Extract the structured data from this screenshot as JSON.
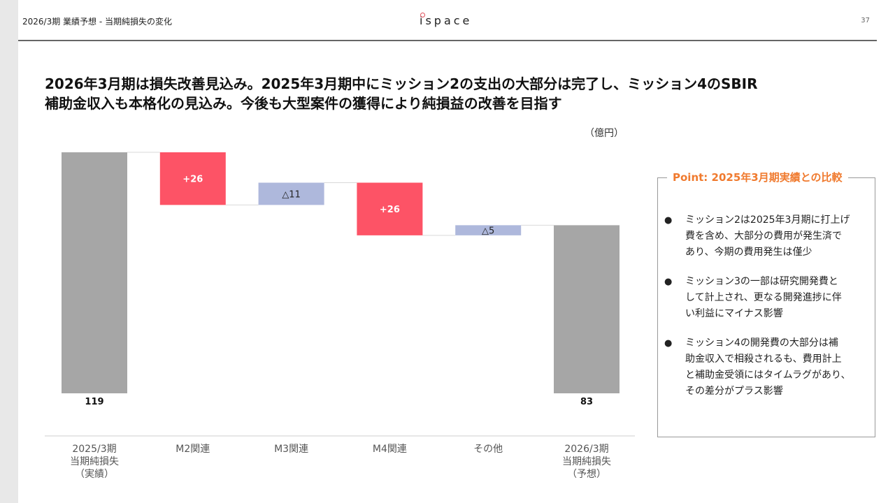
{
  "header": {
    "section_title": "2026/3期 業績予想 - 当期純損失の変化",
    "logo_text": "ispace",
    "page_number": "37"
  },
  "headline": {
    "line1": "2026年3月期は損失改善見込み。2025年3月期中にミッション2の支出の大部分は完了し、ミッション4のSBIR",
    "line2": "補助金収入も本格化の見込み。今後も大型案件の獲得により純損益の改善を目指す"
  },
  "unit_label": "（億円）",
  "point_box": {
    "title": "Point: 2025年3月期実績との比較",
    "bullet_symbol": "●",
    "items": [
      {
        "lines": [
          "ミッション2は2025年3月期に打上げ",
          "費を含め、大部分の費用が発生済で",
          "あり、今期の費用発生は僅少"
        ]
      },
      {
        "lines": [
          "ミッション3の一部は研究開発費と",
          "して計上され、更なる開発進捗に伴",
          "い利益にマイナス影響"
        ]
      },
      {
        "lines": [
          "ミッション4の開発費の大部分は補",
          "助金収入で相殺されるも、費用計上",
          "と補助金受領にはタイムラグがあり、",
          "その差分がプラス影響"
        ]
      }
    ]
  },
  "colors": {
    "total": "#a6a6a6",
    "positive": "#fd5366",
    "negative": "#aeb8dc",
    "point_title": "#f07a2e"
  },
  "chart_data": {
    "type": "waterfall",
    "title": "",
    "xlabel": "",
    "ylabel": "",
    "unit": "億円",
    "categories": [
      {
        "lines": [
          "2025/3期",
          "当期純損失",
          "（実績）"
        ]
      },
      {
        "lines": [
          "M2関連"
        ]
      },
      {
        "lines": [
          "M3関連"
        ]
      },
      {
        "lines": [
          "M4関連"
        ]
      },
      {
        "lines": [
          "その他"
        ]
      },
      {
        "lines": [
          "2026/3期",
          "当期純損失",
          "（予想）"
        ]
      }
    ],
    "steps": [
      {
        "kind": "total",
        "value": 119,
        "label": "119"
      },
      {
        "kind": "positive",
        "value": 26,
        "label": "+26"
      },
      {
        "kind": "negative",
        "value": 11,
        "label": "△11"
      },
      {
        "kind": "positive",
        "value": 26,
        "label": "+26"
      },
      {
        "kind": "negative",
        "value": 5,
        "label": "△5"
      },
      {
        "kind": "total",
        "value": 83,
        "label": "83"
      }
    ]
  }
}
